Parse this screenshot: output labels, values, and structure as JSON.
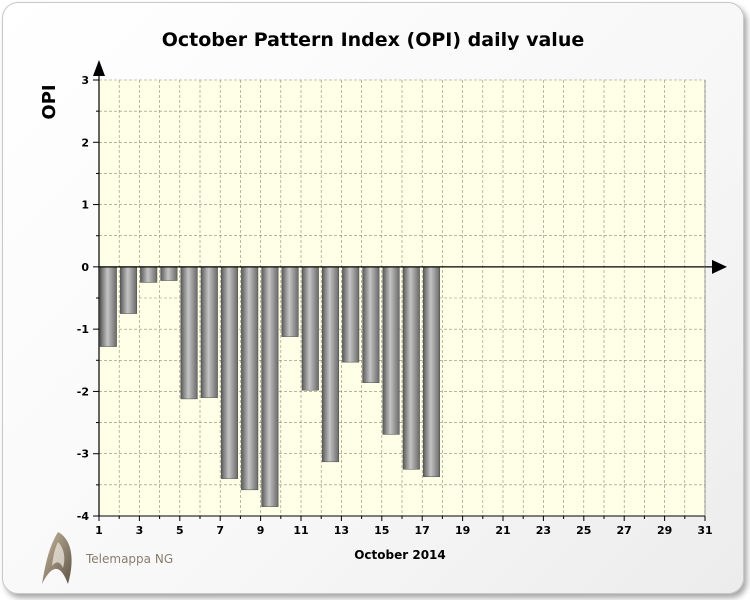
{
  "chart_data": {
    "type": "bar",
    "title": "October Pattern Index (OPI) daily value",
    "ylabel": "OPI",
    "xlabel": "October 2014",
    "ylim": [
      -4,
      3
    ],
    "xlim": [
      1,
      31
    ],
    "yticks": [
      3,
      2,
      1,
      0,
      -1,
      -2,
      -3,
      -4
    ],
    "xticks": [
      1,
      3,
      5,
      7,
      9,
      11,
      13,
      15,
      17,
      19,
      21,
      23,
      25,
      27,
      29,
      31
    ],
    "grid": true,
    "x": [
      1,
      2,
      3,
      4,
      5,
      6,
      7,
      8,
      9,
      10,
      11,
      12,
      13,
      14,
      15,
      16,
      17
    ],
    "values": [
      -1.28,
      -0.75,
      -0.25,
      -0.22,
      -2.12,
      -2.1,
      -3.4,
      -3.58,
      -3.85,
      -1.12,
      -1.98,
      -3.13,
      -1.53,
      -1.86,
      -2.69,
      -3.25,
      -3.37
    ],
    "colors": {
      "bar_dark": "#5e5e5e",
      "bar_light": "#c2c2c2",
      "plot_bg": "#ffffe8",
      "grid": "#8c8c6e"
    }
  },
  "branding": {
    "name": "Telemappa NG"
  }
}
